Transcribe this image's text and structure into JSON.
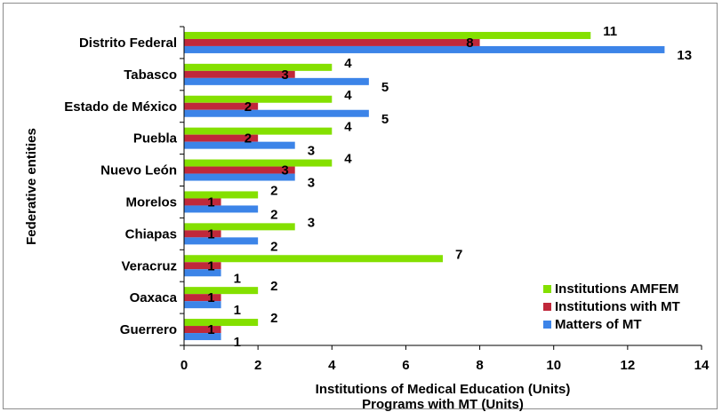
{
  "chart_data": {
    "type": "bar",
    "orientation": "horizontal",
    "categories": [
      "Distrito Federal",
      "Tabasco",
      "Estado de México",
      "Puebla",
      "Nuevo León",
      "Morelos",
      "Chiapas",
      "Veracruz",
      "Oaxaca",
      "Guerrero"
    ],
    "series": [
      {
        "name": "Institutions AMFEM",
        "color": "#84e000",
        "values": [
          11,
          4,
          4,
          4,
          4,
          2,
          3,
          7,
          2,
          2
        ]
      },
      {
        "name": "Institutions with MT",
        "color": "#c0283a",
        "values": [
          8,
          3,
          2,
          2,
          3,
          1,
          1,
          1,
          1,
          1
        ]
      },
      {
        "name": "Matters of MT",
        "color": "#3c84e8",
        "values": [
          13,
          5,
          5,
          3,
          3,
          2,
          2,
          1,
          1,
          1
        ]
      }
    ],
    "xlim": [
      0,
      14
    ],
    "xticks": [
      0,
      2,
      4,
      6,
      8,
      10,
      12,
      14
    ],
    "xlabel": [
      "Institutions of Medical Education (Units)",
      "Programs with MT (Units)"
    ],
    "ylabel": "Federative entities",
    "legend_position": "bottom-right",
    "grid": false
  }
}
